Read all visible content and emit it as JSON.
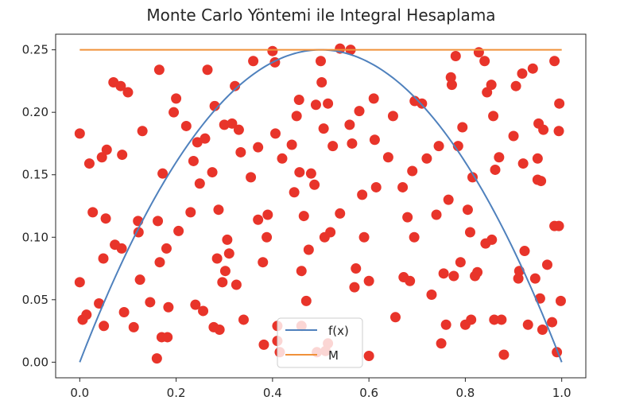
{
  "chart_data": {
    "type": "scatter",
    "title": "Monte Carlo Yöntemi ile Integral Hesaplama",
    "xlabel": "",
    "ylabel": "",
    "xlim": [
      -0.05,
      1.05
    ],
    "ylim": [
      -0.0125,
      0.2625
    ],
    "xticks": [
      0.0,
      0.2,
      0.4,
      0.6,
      0.8,
      1.0
    ],
    "xtick_labels": [
      "0.0",
      "0.2",
      "0.4",
      "0.6",
      "0.8",
      "1.0"
    ],
    "yticks": [
      0.0,
      0.05,
      0.1,
      0.15,
      0.2,
      0.25
    ],
    "ytick_labels": [
      "0.00",
      "0.05",
      "0.10",
      "0.15",
      "0.20",
      "0.25"
    ],
    "grid": false,
    "legend_position": "lower-center",
    "series": [
      {
        "name": "f(x)",
        "kind": "line",
        "color": "#4f81bd",
        "function": "x*(1-x)",
        "x": [
          0.0,
          0.05,
          0.1,
          0.15,
          0.2,
          0.25,
          0.3,
          0.35,
          0.4,
          0.45,
          0.5,
          0.55,
          0.6,
          0.65,
          0.7,
          0.75,
          0.8,
          0.85,
          0.9,
          0.95,
          1.0
        ],
        "y": [
          0.0,
          0.0475,
          0.09,
          0.1275,
          0.16,
          0.1875,
          0.21,
          0.2275,
          0.24,
          0.2475,
          0.25,
          0.2475,
          0.24,
          0.2275,
          0.21,
          0.1875,
          0.16,
          0.1275,
          0.09,
          0.0475,
          0.0
        ]
      },
      {
        "name": "M",
        "kind": "line",
        "color": "#f0913a",
        "x": [
          0.0,
          1.0
        ],
        "y": [
          0.25,
          0.25
        ]
      },
      {
        "name": "",
        "kind": "scatter",
        "color": "#e8342a",
        "points": [
          [
            0.0,
            0.183
          ],
          [
            0.0,
            0.064
          ],
          [
            0.006,
            0.034
          ],
          [
            0.014,
            0.038
          ],
          [
            0.02,
            0.159
          ],
          [
            0.027,
            0.12
          ],
          [
            0.04,
            0.047
          ],
          [
            0.046,
            0.164
          ],
          [
            0.049,
            0.083
          ],
          [
            0.05,
            0.029
          ],
          [
            0.054,
            0.115
          ],
          [
            0.056,
            0.17
          ],
          [
            0.07,
            0.224
          ],
          [
            0.073,
            0.094
          ],
          [
            0.085,
            0.221
          ],
          [
            0.087,
            0.091
          ],
          [
            0.088,
            0.166
          ],
          [
            0.092,
            0.04
          ],
          [
            0.1,
            0.216
          ],
          [
            0.112,
            0.028
          ],
          [
            0.121,
            0.113
          ],
          [
            0.122,
            0.104
          ],
          [
            0.125,
            0.066
          ],
          [
            0.13,
            0.185
          ],
          [
            0.146,
            0.048
          ],
          [
            0.16,
            0.003
          ],
          [
            0.162,
            0.113
          ],
          [
            0.165,
            0.234
          ],
          [
            0.166,
            0.08
          ],
          [
            0.17,
            0.02
          ],
          [
            0.172,
            0.151
          ],
          [
            0.18,
            0.091
          ],
          [
            0.182,
            0.02
          ],
          [
            0.184,
            0.044
          ],
          [
            0.195,
            0.2
          ],
          [
            0.2,
            0.211
          ],
          [
            0.205,
            0.105
          ],
          [
            0.221,
            0.189
          ],
          [
            0.23,
            0.12
          ],
          [
            0.236,
            0.161
          ],
          [
            0.24,
            0.046
          ],
          [
            0.244,
            0.176
          ],
          [
            0.249,
            0.143
          ],
          [
            0.256,
            0.041
          ],
          [
            0.26,
            0.179
          ],
          [
            0.265,
            0.234
          ],
          [
            0.275,
            0.152
          ],
          [
            0.278,
            0.028
          ],
          [
            0.28,
            0.205
          ],
          [
            0.285,
            0.083
          ],
          [
            0.288,
            0.122
          ],
          [
            0.29,
            0.026
          ],
          [
            0.296,
            0.064
          ],
          [
            0.3,
            0.19
          ],
          [
            0.302,
            0.073
          ],
          [
            0.306,
            0.098
          ],
          [
            0.31,
            0.087
          ],
          [
            0.316,
            0.191
          ],
          [
            0.322,
            0.221
          ],
          [
            0.325,
            0.062
          ],
          [
            0.33,
            0.186
          ],
          [
            0.334,
            0.168
          ],
          [
            0.34,
            0.034
          ],
          [
            0.355,
            0.148
          ],
          [
            0.36,
            0.241
          ],
          [
            0.37,
            0.172
          ],
          [
            0.37,
            0.114
          ],
          [
            0.38,
            0.08
          ],
          [
            0.382,
            0.014
          ],
          [
            0.388,
            0.1
          ],
          [
            0.39,
            0.118
          ],
          [
            0.4,
            0.249
          ],
          [
            0.405,
            0.24
          ],
          [
            0.406,
            0.183
          ],
          [
            0.41,
            0.029
          ],
          [
            0.41,
            0.017
          ],
          [
            0.415,
            0.008
          ],
          [
            0.42,
            0.163
          ],
          [
            0.44,
            0.174
          ],
          [
            0.445,
            0.136
          ],
          [
            0.45,
            0.197
          ],
          [
            0.455,
            0.21
          ],
          [
            0.456,
            0.152
          ],
          [
            0.46,
            0.029
          ],
          [
            0.46,
            0.073
          ],
          [
            0.465,
            0.117
          ],
          [
            0.47,
            0.049
          ],
          [
            0.475,
            0.09
          ],
          [
            0.48,
            0.151
          ],
          [
            0.487,
            0.142
          ],
          [
            0.49,
            0.206
          ],
          [
            0.492,
            0.008
          ],
          [
            0.5,
            0.241
          ],
          [
            0.502,
            0.224
          ],
          [
            0.506,
            0.187
          ],
          [
            0.508,
            0.1
          ],
          [
            0.51,
            0.009
          ],
          [
            0.515,
            0.207
          ],
          [
            0.515,
            0.015
          ],
          [
            0.52,
            0.104
          ],
          [
            0.525,
            0.173
          ],
          [
            0.54,
            0.251
          ],
          [
            0.54,
            0.119
          ],
          [
            0.56,
            0.19
          ],
          [
            0.562,
            0.25
          ],
          [
            0.565,
            0.175
          ],
          [
            0.57,
            0.06
          ],
          [
            0.573,
            0.075
          ],
          [
            0.58,
            0.201
          ],
          [
            0.586,
            0.134
          ],
          [
            0.59,
            0.1
          ],
          [
            0.6,
            0.065
          ],
          [
            0.6,
            0.005
          ],
          [
            0.61,
            0.211
          ],
          [
            0.612,
            0.178
          ],
          [
            0.615,
            0.14
          ],
          [
            0.64,
            0.164
          ],
          [
            0.65,
            0.197
          ],
          [
            0.655,
            0.036
          ],
          [
            0.67,
            0.14
          ],
          [
            0.672,
            0.068
          ],
          [
            0.68,
            0.116
          ],
          [
            0.685,
            0.065
          ],
          [
            0.69,
            0.153
          ],
          [
            0.694,
            0.1
          ],
          [
            0.695,
            0.209
          ],
          [
            0.71,
            0.207
          ],
          [
            0.72,
            0.163
          ],
          [
            0.73,
            0.054
          ],
          [
            0.74,
            0.118
          ],
          [
            0.745,
            0.173
          ],
          [
            0.75,
            0.015
          ],
          [
            0.755,
            0.071
          ],
          [
            0.76,
            0.03
          ],
          [
            0.765,
            0.13
          ],
          [
            0.77,
            0.228
          ],
          [
            0.772,
            0.222
          ],
          [
            0.776,
            0.069
          ],
          [
            0.78,
            0.245
          ],
          [
            0.785,
            0.173
          ],
          [
            0.79,
            0.08
          ],
          [
            0.794,
            0.188
          ],
          [
            0.8,
            0.03
          ],
          [
            0.805,
            0.122
          ],
          [
            0.81,
            0.104
          ],
          [
            0.812,
            0.034
          ],
          [
            0.815,
            0.148
          ],
          [
            0.82,
            0.069
          ],
          [
            0.825,
            0.072
          ],
          [
            0.828,
            0.248
          ],
          [
            0.84,
            0.241
          ],
          [
            0.842,
            0.095
          ],
          [
            0.845,
            0.216
          ],
          [
            0.854,
            0.222
          ],
          [
            0.855,
            0.098
          ],
          [
            0.858,
            0.197
          ],
          [
            0.86,
            0.034
          ],
          [
            0.862,
            0.154
          ],
          [
            0.87,
            0.164
          ],
          [
            0.875,
            0.034
          ],
          [
            0.88,
            0.006
          ],
          [
            0.9,
            0.181
          ],
          [
            0.905,
            0.221
          ],
          [
            0.91,
            0.067
          ],
          [
            0.912,
            0.073
          ],
          [
            0.918,
            0.231
          ],
          [
            0.92,
            0.159
          ],
          [
            0.923,
            0.089
          ],
          [
            0.93,
            0.03
          ],
          [
            0.94,
            0.235
          ],
          [
            0.945,
            0.067
          ],
          [
            0.95,
            0.163
          ],
          [
            0.95,
            0.146
          ],
          [
            0.952,
            0.191
          ],
          [
            0.955,
            0.051
          ],
          [
            0.957,
            0.145
          ],
          [
            0.96,
            0.026
          ],
          [
            0.962,
            0.186
          ],
          [
            0.97,
            0.078
          ],
          [
            0.98,
            0.032
          ],
          [
            0.985,
            0.241
          ],
          [
            0.985,
            0.109
          ],
          [
            0.99,
            0.008
          ],
          [
            0.994,
            0.109
          ],
          [
            0.994,
            0.185
          ],
          [
            0.995,
            0.207
          ],
          [
            0.998,
            0.049
          ]
        ]
      }
    ]
  }
}
